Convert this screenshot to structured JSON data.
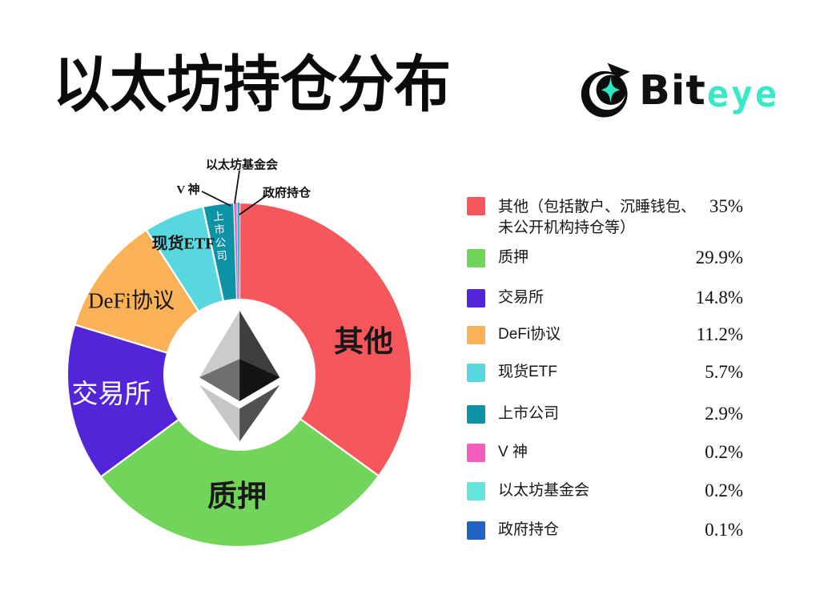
{
  "header": {
    "title": "以太坊持仓分布"
  },
  "brand": {
    "icon": "biteye-eye-star-logo",
    "name_black": "Bit",
    "name_teal": "eye",
    "teal_color": "#38E9C7"
  },
  "chart_data": {
    "type": "pie",
    "subtype": "donut",
    "title": "以太坊持仓分布",
    "unit": "%",
    "start_angle_deg": 0,
    "direction": "clockwise",
    "inner_radius_ratio": 0.44,
    "center_icon": "ethereum-logo",
    "legend_position": "right",
    "slices": [
      {
        "label": "其他",
        "legend_lines": [
          "其他（包括散户、沉睡钱包、",
          "未公开机构持仓等）"
        ],
        "value": 35,
        "pct_text": "35%",
        "color": "#F5575C"
      },
      {
        "label": "质押",
        "legend_lines": [
          "质押"
        ],
        "value": 29.9,
        "pct_text": "29.9%",
        "color": "#72D55B"
      },
      {
        "label": "交易所",
        "legend_lines": [
          "交易所"
        ],
        "value": 14.8,
        "pct_text": "14.8%",
        "color": "#5324D8"
      },
      {
        "label": "DeFi协议",
        "legend_lines": [
          "DeFi协议"
        ],
        "value": 11.2,
        "pct_text": "11.2%",
        "color": "#FBB155"
      },
      {
        "label": "现货ETF",
        "legend_lines": [
          "现货ETF"
        ],
        "value": 5.7,
        "pct_text": "5.7%",
        "color": "#58D8DE"
      },
      {
        "label": "上市公司",
        "legend_lines": [
          "上市公司"
        ],
        "value": 2.9,
        "pct_text": "2.9%",
        "color": "#0E93A6"
      },
      {
        "label": "V 神",
        "legend_lines": [
          "V 神"
        ],
        "value": 0.2,
        "pct_text": "0.2%",
        "color": "#F45CBE"
      },
      {
        "label": "以太坊基金会",
        "legend_lines": [
          "以太坊基金会"
        ],
        "value": 0.2,
        "pct_text": "0.2%",
        "color": "#66E4DC"
      },
      {
        "label": "政府持仓",
        "legend_lines": [
          "政府持仓"
        ],
        "value": 0.1,
        "pct_text": "0.1%",
        "color": "#2363C5"
      }
    ]
  }
}
